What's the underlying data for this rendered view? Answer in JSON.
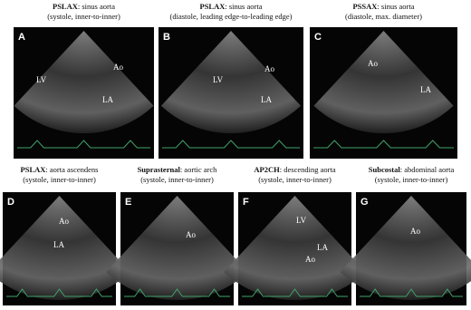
{
  "panels": [
    {
      "letter": "A",
      "title_bold": "PSLAX",
      "title": ": sinus aorta",
      "subtitle": "(systole, inner-to-inner)",
      "labels": [
        "LV",
        "Ao",
        "LA"
      ]
    },
    {
      "letter": "B",
      "title_bold": "PSLAX",
      "title": ": sinus aorta",
      "subtitle": "(diastole, leading edge-to-leading edge)",
      "labels": [
        "LV",
        "Ao",
        "LA"
      ]
    },
    {
      "letter": "C",
      "title_bold": "PSSAX",
      "title": ": sinus aorta",
      "subtitle": "(diastole, max. diameter)",
      "labels": [
        "Ao",
        "LA"
      ]
    },
    {
      "letter": "D",
      "title_bold": "PSLAX",
      "title": ": aorta ascendens",
      "subtitle": "(systole, inner-to-inner)",
      "labels": [
        "Ao",
        "LA"
      ]
    },
    {
      "letter": "E",
      "title_bold": "Suprasternal",
      "title": ": aortic arch",
      "subtitle": "(systole, inner-to-inner)",
      "labels": [
        "Ao"
      ]
    },
    {
      "letter": "F",
      "title_bold": "AP2CH",
      "title": ": descending aorta",
      "subtitle": "(systole, inner-to-inner)",
      "labels": [
        "LV",
        "LA",
        "Ao"
      ]
    },
    {
      "letter": "G",
      "title_bold": "Subcostal",
      "title": ": abdominal aorta",
      "subtitle": "(systole, inner-to-inner)",
      "labels": [
        "Ao"
      ]
    }
  ]
}
